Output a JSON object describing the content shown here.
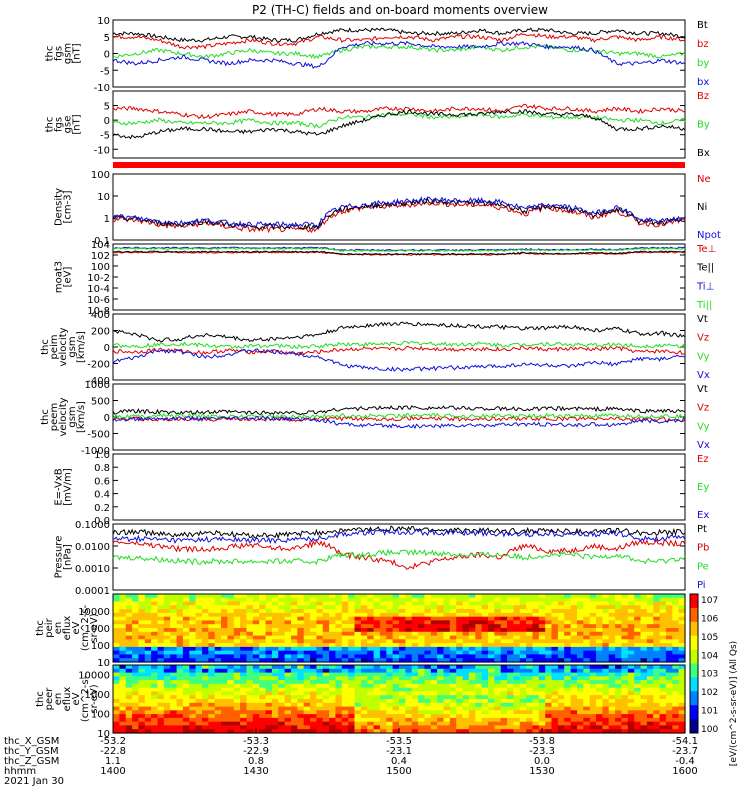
{
  "title": "P2 (TH-C) fields and on-board moments overview",
  "colors": {
    "black": "#000000",
    "red": "#e00000",
    "green": "#22dd22",
    "blue": "#1010d8"
  },
  "chart_data": [
    {
      "type": "line",
      "panel": "fgs_gsm",
      "ylabel": [
        "thc",
        "fgs",
        "gsm",
        "[nT]"
      ],
      "yticks": [
        10,
        5,
        0,
        -5,
        -10
      ],
      "ylim": [
        -10,
        10
      ],
      "series": [
        {
          "name": "Bt",
          "color": "black",
          "values": [
            6,
            6,
            5,
            4,
            4,
            5,
            5,
            4,
            4,
            6,
            7,
            7,
            7,
            6,
            6,
            6,
            7,
            6,
            7,
            7,
            6,
            6,
            7,
            6,
            6,
            5
          ]
        },
        {
          "name": "bz",
          "color": "red",
          "values": [
            5,
            5,
            4,
            2,
            2,
            3,
            4,
            3,
            3,
            5,
            4,
            4,
            5,
            5,
            4,
            5,
            5,
            4,
            6,
            5,
            5,
            4,
            5,
            4,
            5,
            4
          ]
        },
        {
          "name": "by",
          "color": "green",
          "values": [
            -1,
            0,
            1,
            0,
            -1,
            0,
            1,
            0,
            0,
            -1,
            1,
            2,
            2,
            2,
            1,
            1,
            2,
            1,
            2,
            2,
            1,
            1,
            0,
            0,
            -1,
            0
          ]
        },
        {
          "name": "bx",
          "color": "blue",
          "values": [
            -2,
            -3,
            -2,
            -1,
            -2,
            -3,
            -2,
            -2,
            -3,
            -4,
            2,
            3,
            3,
            3,
            2,
            2,
            2,
            3,
            3,
            2,
            2,
            1,
            -3,
            -3,
            -2,
            -3
          ]
        }
      ]
    },
    {
      "type": "line",
      "panel": "fgs_gse",
      "ylabel": [
        "thc",
        "fgs",
        "gse",
        "[nT]"
      ],
      "yticks": [
        5,
        0,
        -5,
        -10
      ],
      "ylim": [
        -13,
        10
      ],
      "series": [
        {
          "name": "Bz",
          "color": "red",
          "values": [
            4,
            4,
            3,
            2,
            1,
            2,
            3,
            2,
            2,
            4,
            3,
            3,
            4,
            4,
            3,
            4,
            4,
            3,
            5,
            4,
            4,
            3,
            4,
            3,
            4,
            3
          ]
        },
        {
          "name": "By",
          "color": "green",
          "values": [
            -1,
            -1,
            0,
            -1,
            -1,
            -1,
            0,
            -1,
            -1,
            -2,
            1,
            1,
            2,
            2,
            1,
            1,
            2,
            1,
            2,
            1,
            1,
            1,
            0,
            0,
            -1,
            0
          ]
        },
        {
          "name": "Bx",
          "color": "black",
          "values": [
            -5,
            -6,
            -4,
            -3,
            -3,
            -4,
            -4,
            -3,
            -4,
            -5,
            -2,
            0,
            2,
            3,
            2,
            2,
            2,
            3,
            3,
            2,
            2,
            1,
            -3,
            -3,
            -2,
            -3
          ]
        }
      ]
    },
    {
      "type": "line",
      "panel": "density",
      "ylabel": [
        "Density",
        "[cm-3]"
      ],
      "yticks": [
        "100",
        "10",
        "1",
        "0.1"
      ],
      "scale": "log",
      "ylim": [
        0.1,
        100
      ],
      "series": [
        {
          "name": "Ne",
          "color": "red",
          "values": [
            0.9,
            0.8,
            0.5,
            0.4,
            0.6,
            0.4,
            0.3,
            0.3,
            0.3,
            0.3,
            2,
            3,
            3.5,
            4,
            5,
            4,
            4,
            3,
            1.5,
            3,
            2,
            1,
            2,
            0.6,
            0.5,
            0.8
          ]
        },
        {
          "name": "Ni",
          "color": "black",
          "values": [
            1,
            0.9,
            0.6,
            0.5,
            0.7,
            0.5,
            0.4,
            0.4,
            0.4,
            0.4,
            2.5,
            3.5,
            4,
            5,
            6,
            5,
            5,
            4,
            2,
            3.5,
            2.5,
            1.2,
            2.5,
            0.7,
            0.6,
            0.9
          ]
        },
        {
          "name": "Npot",
          "color": "blue",
          "values": [
            1.2,
            1,
            0.7,
            0.6,
            0.8,
            0.6,
            0.5,
            0.5,
            0.5,
            0.5,
            3,
            4,
            5,
            6,
            7,
            6,
            6,
            5,
            2.5,
            4,
            3,
            1.5,
            3,
            0.8,
            0.7,
            1
          ]
        }
      ]
    },
    {
      "type": "line",
      "panel": "temperature",
      "ylabel": [
        "moat3",
        "[eV]"
      ],
      "yticks": [
        "10^4",
        "10^2",
        "10^0",
        "10^-2",
        "10^-4",
        "10^-6",
        "10^-8"
      ],
      "scale": "log",
      "ylim": [
        1e-08,
        10000
      ],
      "series": [
        {
          "name": "Te⊥",
          "color": "red",
          "values": [
            300,
            300,
            300,
            300,
            300,
            300,
            300,
            300,
            300,
            300,
            120,
            120,
            120,
            120,
            120,
            120,
            120,
            120,
            200,
            150,
            150,
            200,
            150,
            300,
            300,
            300
          ]
        },
        {
          "name": "Te||",
          "color": "black",
          "values": [
            400,
            400,
            400,
            400,
            400,
            400,
            400,
            400,
            400,
            400,
            150,
            150,
            150,
            150,
            150,
            150,
            150,
            150,
            250,
            180,
            180,
            250,
            180,
            400,
            400,
            400
          ]
        },
        {
          "name": "Ti⊥",
          "color": "blue",
          "values": [
            2000,
            2000,
            2000,
            2000,
            2000,
            2000,
            2000,
            2000,
            2000,
            2000,
            800,
            800,
            800,
            800,
            800,
            800,
            800,
            800,
            1200,
            900,
            900,
            1200,
            900,
            2000,
            2000,
            2000
          ]
        },
        {
          "name": "Ti||",
          "color": "green",
          "values": [
            1500,
            1500,
            1500,
            1500,
            1500,
            1500,
            1500,
            1500,
            1500,
            1500,
            600,
            600,
            600,
            600,
            600,
            600,
            600,
            600,
            900,
            700,
            700,
            900,
            700,
            1500,
            1500,
            1500
          ]
        }
      ]
    },
    {
      "type": "line",
      "panel": "peim_velocity",
      "ylabel": [
        "thc",
        "peim",
        "velocity",
        "gsm",
        "[km/s]"
      ],
      "yticks": [
        400,
        200,
        0,
        -200,
        -400
      ],
      "ylim": [
        -400,
        400
      ],
      "series": [
        {
          "name": "Vt",
          "color": "black",
          "values": [
            200,
            150,
            80,
            100,
            150,
            120,
            80,
            100,
            120,
            150,
            230,
            260,
            280,
            280,
            270,
            260,
            250,
            240,
            220,
            230,
            250,
            200,
            220,
            160,
            170,
            120
          ]
        },
        {
          "name": "Vz",
          "color": "red",
          "values": [
            -50,
            -60,
            -30,
            -50,
            -70,
            -40,
            -60,
            -50,
            -80,
            -60,
            -30,
            -20,
            -30,
            -10,
            -20,
            -30,
            -20,
            -30,
            -10,
            -30,
            -20,
            -30,
            -10,
            -60,
            -50,
            -70
          ]
        },
        {
          "name": "Vy",
          "color": "green",
          "values": [
            20,
            10,
            30,
            40,
            20,
            0,
            10,
            20,
            0,
            10,
            40,
            30,
            40,
            50,
            40,
            30,
            40,
            20,
            30,
            40,
            30,
            20,
            30,
            10,
            20,
            10
          ]
        },
        {
          "name": "Vx",
          "color": "blue",
          "values": [
            -180,
            -130,
            -40,
            -60,
            -120,
            -90,
            -40,
            -60,
            -80,
            -120,
            -220,
            -250,
            -270,
            -270,
            -260,
            -250,
            -240,
            -230,
            -210,
            -220,
            -240,
            -190,
            -210,
            -140,
            -150,
            -100
          ]
        }
      ]
    },
    {
      "type": "line",
      "panel": "peem_velocity",
      "ylabel": [
        "thc",
        "peem",
        "velocity",
        "gsm",
        "[km/s]"
      ],
      "yticks": [
        1000,
        500,
        0,
        -500,
        -1000
      ],
      "ylim": [
        -1000,
        1000
      ],
      "series": [
        {
          "name": "Vt",
          "color": "black",
          "values": [
            150,
            180,
            150,
            120,
            140,
            160,
            130,
            140,
            120,
            150,
            250,
            260,
            280,
            290,
            280,
            270,
            260,
            250,
            240,
            250,
            260,
            240,
            250,
            180,
            190,
            150
          ]
        },
        {
          "name": "Vz",
          "color": "red",
          "values": [
            -80,
            -50,
            -100,
            -60,
            -80,
            -50,
            -70,
            -60,
            -80,
            -50,
            -60,
            -50,
            -60,
            -40,
            -50,
            -60,
            -50,
            -60,
            -40,
            -60,
            -50,
            -60,
            -40,
            -80,
            -70,
            -90
          ]
        },
        {
          "name": "Vy",
          "color": "green",
          "values": [
            30,
            20,
            40,
            40,
            20,
            20,
            30,
            20,
            10,
            20,
            40,
            30,
            40,
            50,
            40,
            30,
            40,
            30,
            30,
            40,
            30,
            30,
            30,
            20,
            20,
            10
          ]
        },
        {
          "name": "Vx",
          "color": "blue",
          "values": [
            -80,
            -60,
            -50,
            -40,
            -60,
            -50,
            -40,
            -50,
            -60,
            -80,
            -220,
            -250,
            -270,
            -280,
            -270,
            -260,
            -250,
            -240,
            -220,
            -230,
            -250,
            -220,
            -230,
            -120,
            -140,
            -90
          ]
        }
      ]
    },
    {
      "type": "line",
      "panel": "e_field",
      "ylabel": [
        "E=-VxB",
        "[mV/m]"
      ],
      "yticks": [
        "1.0",
        "0.8",
        "0.6",
        "0.4",
        "0.2",
        "0.0"
      ],
      "ylim": [
        0,
        1
      ],
      "series": [
        {
          "name": "Ez",
          "color": "red",
          "values": []
        },
        {
          "name": "Ey",
          "color": "green",
          "values": []
        },
        {
          "name": "Ex",
          "color": "blue",
          "values": []
        }
      ]
    },
    {
      "type": "line",
      "panel": "pressure",
      "ylabel": [
        "Pressure",
        "[nPa]"
      ],
      "yticks": [
        "0.1000",
        "0.0100",
        "0.0010",
        "0.0001"
      ],
      "scale": "log",
      "ylim": [
        0.0001,
        0.1
      ],
      "series": [
        {
          "name": "Pt",
          "color": "black",
          "values": [
            0.04,
            0.045,
            0.035,
            0.03,
            0.04,
            0.035,
            0.03,
            0.03,
            0.035,
            0.04,
            0.05,
            0.055,
            0.06,
            0.06,
            0.055,
            0.05,
            0.05,
            0.045,
            0.05,
            0.05,
            0.045,
            0.045,
            0.05,
            0.04,
            0.04,
            0.045
          ]
        },
        {
          "name": "Pb",
          "color": "red",
          "values": [
            0.015,
            0.013,
            0.01,
            0.007,
            0.007,
            0.009,
            0.011,
            0.008,
            0.008,
            0.014,
            0.004,
            0.003,
            0.002,
            0.001,
            0.002,
            0.003,
            0.004,
            0.003,
            0.01,
            0.006,
            0.006,
            0.01,
            0.007,
            0.015,
            0.014,
            0.012
          ]
        },
        {
          "name": "Pe",
          "color": "green",
          "values": [
            0.003,
            0.003,
            0.0025,
            0.002,
            0.002,
            0.002,
            0.002,
            0.002,
            0.002,
            0.002,
            0.004,
            0.004,
            0.005,
            0.005,
            0.005,
            0.004,
            0.004,
            0.004,
            0.003,
            0.004,
            0.004,
            0.003,
            0.004,
            0.002,
            0.002,
            0.003
          ]
        },
        {
          "name": "Pi",
          "color": "blue",
          "values": [
            0.02,
            0.022,
            0.02,
            0.018,
            0.02,
            0.02,
            0.018,
            0.018,
            0.02,
            0.022,
            0.035,
            0.04,
            0.045,
            0.045,
            0.04,
            0.04,
            0.04,
            0.035,
            0.035,
            0.038,
            0.036,
            0.034,
            0.038,
            0.022,
            0.022,
            0.024
          ]
        }
      ]
    },
    {
      "type": "heatmap",
      "panel": "peir_spectrogram",
      "ylabel": [
        "thc",
        "peir",
        "en",
        "eflux",
        "eV",
        "(cm^2-s-",
        "sr-eV)"
      ],
      "yticks": [
        "10000",
        "1000",
        "100",
        "10"
      ],
      "scale": "log",
      "ylim": [
        10,
        100000
      ]
    },
    {
      "type": "heatmap",
      "panel": "peer_spectrogram",
      "ylabel": [
        "thc",
        "peer",
        "en",
        "eflux",
        "eV",
        "(cm^2-s-",
        "sr-eV)"
      ],
      "yticks": [
        "10000",
        "1000",
        "100",
        "10"
      ],
      "scale": "log",
      "ylim": [
        10,
        30000
      ]
    }
  ],
  "colorbar": {
    "ticks": [
      "10^7",
      "10^6",
      "10^5",
      "10^4",
      "10^3",
      "10^2",
      "10^1",
      "10^0"
    ],
    "label": "[eV/(cm^2-s-sr-eV)] (All Qs)"
  },
  "x_axis": {
    "row_labels": [
      "thc_X_GSM",
      "thc_Y_GSM",
      "thc_Z_GSM",
      "hhmm",
      "2021 Jan 30"
    ],
    "columns": [
      [
        "-53.2",
        "-22.8",
        "1.1",
        "1400"
      ],
      [
        "-53.3",
        "-22.9",
        "0.8",
        "1430"
      ],
      [
        "-53.5",
        "-23.1",
        "0.4",
        "1500"
      ],
      [
        "-53.8",
        "-23.3",
        "0.0",
        "1530"
      ],
      [
        "-54.1",
        "-23.7",
        "-0.4",
        "1600"
      ]
    ]
  }
}
